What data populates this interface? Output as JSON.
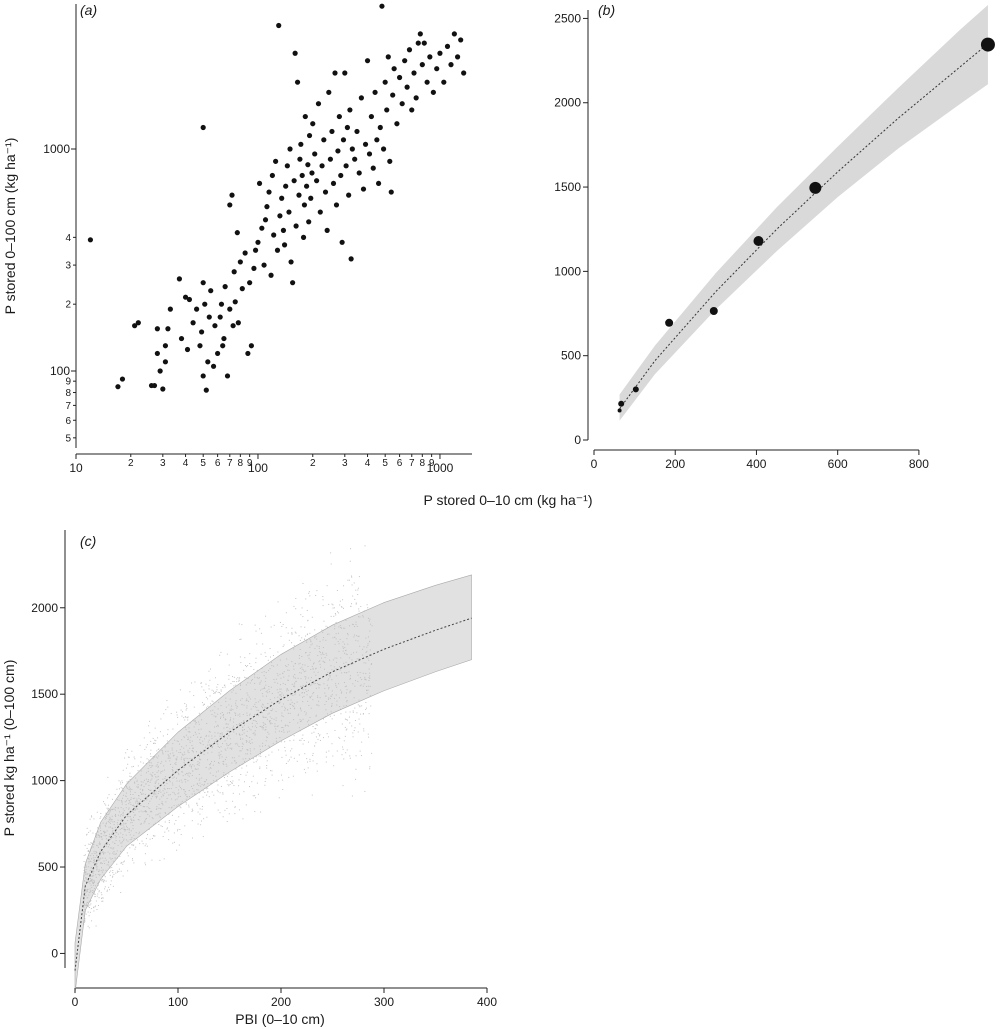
{
  "x_label_ab": "P stored 0–10 cm (kg ha⁻¹)",
  "chart_data": [
    {
      "panel": "a",
      "panel_label": "(a)",
      "type": "scatter",
      "ylabel": "P stored 0–100 cm (kg ha⁻¹)",
      "xscale": "log",
      "yscale": "log",
      "xlim": [
        10,
        1500
      ],
      "ylim": [
        45,
        4500
      ],
      "major_xticks": [
        10,
        100,
        1000
      ],
      "major_xtick_labels": [
        "10",
        "100",
        "1000"
      ],
      "minor_xticks": [
        2,
        3,
        4,
        5,
        6,
        7,
        8,
        9,
        20,
        30,
        40,
        50,
        60,
        70,
        80,
        90,
        200,
        300,
        400,
        500,
        600,
        700,
        800,
        900
      ],
      "major_yticks": [
        100,
        1000
      ],
      "major_ytick_labels": [
        "100",
        "1000"
      ],
      "minor_yticks": [
        5,
        6,
        7,
        8,
        9,
        20,
        30,
        40,
        50,
        60,
        70,
        80,
        90,
        200,
        300,
        400
      ],
      "points": [
        [
          12,
          390
        ],
        [
          17,
          85
        ],
        [
          18,
          92
        ],
        [
          21,
          160
        ],
        [
          22,
          165
        ],
        [
          26,
          86
        ],
        [
          27,
          86
        ],
        [
          28,
          120
        ],
        [
          28,
          155
        ],
        [
          29,
          100
        ],
        [
          30,
          83
        ],
        [
          31,
          110
        ],
        [
          31,
          130
        ],
        [
          32,
          155
        ],
        [
          33,
          190
        ],
        [
          37,
          260
        ],
        [
          38,
          140
        ],
        [
          40,
          215
        ],
        [
          41,
          125
        ],
        [
          42,
          210
        ],
        [
          44,
          165
        ],
        [
          46,
          190
        ],
        [
          48,
          130
        ],
        [
          49,
          150
        ],
        [
          50,
          95
        ],
        [
          50,
          250
        ],
        [
          50,
          1250
        ],
        [
          51,
          200
        ],
        [
          52,
          82
        ],
        [
          53,
          110
        ],
        [
          54,
          175
        ],
        [
          55,
          230
        ],
        [
          57,
          105
        ],
        [
          58,
          160
        ],
        [
          60,
          120
        ],
        [
          62,
          175
        ],
        [
          63,
          200
        ],
        [
          64,
          130
        ],
        [
          65,
          140
        ],
        [
          66,
          240
        ],
        [
          68,
          95
        ],
        [
          70,
          560
        ],
        [
          70,
          190
        ],
        [
          72,
          620
        ],
        [
          73,
          160
        ],
        [
          74,
          280
        ],
        [
          75,
          205
        ],
        [
          77,
          420
        ],
        [
          78,
          165
        ],
        [
          80,
          310
        ],
        [
          82,
          235
        ],
        [
          85,
          340
        ],
        [
          88,
          120
        ],
        [
          90,
          250
        ],
        [
          92,
          130
        ],
        [
          95,
          290
        ],
        [
          97,
          350
        ],
        [
          100,
          380
        ],
        [
          102,
          700
        ],
        [
          105,
          440
        ],
        [
          108,
          300
        ],
        [
          110,
          480
        ],
        [
          112,
          550
        ],
        [
          115,
          640
        ],
        [
          118,
          270
        ],
        [
          120,
          760
        ],
        [
          122,
          410
        ],
        [
          125,
          880
        ],
        [
          128,
          350
        ],
        [
          130,
          3600
        ],
        [
          132,
          500
        ],
        [
          135,
          600
        ],
        [
          138,
          430
        ],
        [
          140,
          370
        ],
        [
          142,
          680
        ],
        [
          145,
          840
        ],
        [
          148,
          520
        ],
        [
          150,
          1000
        ],
        [
          152,
          310
        ],
        [
          155,
          250
        ],
        [
          158,
          720
        ],
        [
          160,
          2700
        ],
        [
          162,
          450
        ],
        [
          165,
          2000
        ],
        [
          168,
          620
        ],
        [
          170,
          900
        ],
        [
          172,
          1050
        ],
        [
          175,
          760
        ],
        [
          178,
          400
        ],
        [
          180,
          560
        ],
        [
          182,
          1400
        ],
        [
          185,
          680
        ],
        [
          188,
          850
        ],
        [
          190,
          470
        ],
        [
          192,
          1150
        ],
        [
          195,
          600
        ],
        [
          198,
          780
        ],
        [
          200,
          1300
        ],
        [
          205,
          950
        ],
        [
          210,
          720
        ],
        [
          215,
          1600
        ],
        [
          220,
          520
        ],
        [
          225,
          840
        ],
        [
          230,
          1100
        ],
        [
          235,
          640
        ],
        [
          240,
          430
        ],
        [
          245,
          1800
        ],
        [
          250,
          900
        ],
        [
          255,
          1200
        ],
        [
          260,
          700
        ],
        [
          265,
          2200
        ],
        [
          270,
          560
        ],
        [
          275,
          980
        ],
        [
          280,
          1400
        ],
        [
          285,
          760
        ],
        [
          290,
          380
        ],
        [
          295,
          1100
        ],
        [
          300,
          2200
        ],
        [
          305,
          840
        ],
        [
          310,
          1250
        ],
        [
          315,
          620
        ],
        [
          320,
          1500
        ],
        [
          325,
          320
        ],
        [
          330,
          1000
        ],
        [
          340,
          900
        ],
        [
          350,
          1200
        ],
        [
          360,
          780
        ],
        [
          370,
          1700
        ],
        [
          380,
          660
        ],
        [
          390,
          1050
        ],
        [
          400,
          2500
        ],
        [
          410,
          950
        ],
        [
          420,
          1400
        ],
        [
          430,
          820
        ],
        [
          440,
          1800
        ],
        [
          450,
          1100
        ],
        [
          460,
          700
        ],
        [
          470,
          1250
        ],
        [
          480,
          4400
        ],
        [
          490,
          1000
        ],
        [
          500,
          2000
        ],
        [
          510,
          1500
        ],
        [
          520,
          2600
        ],
        [
          530,
          880
        ],
        [
          540,
          640
        ],
        [
          550,
          1750
        ],
        [
          560,
          2300
        ],
        [
          580,
          1300
        ],
        [
          600,
          2100
        ],
        [
          620,
          1600
        ],
        [
          640,
          2500
        ],
        [
          660,
          1900
        ],
        [
          680,
          2800
        ],
        [
          700,
          1500
        ],
        [
          720,
          2200
        ],
        [
          740,
          1700
        ],
        [
          760,
          3000
        ],
        [
          780,
          3300
        ],
        [
          800,
          2400
        ],
        [
          820,
          3000
        ],
        [
          850,
          2000
        ],
        [
          880,
          2600
        ],
        [
          920,
          1800
        ],
        [
          960,
          2300
        ],
        [
          1000,
          2700
        ],
        [
          1050,
          2000
        ],
        [
          1100,
          2900
        ],
        [
          1150,
          2400
        ],
        [
          1200,
          3300
        ],
        [
          1250,
          2600
        ],
        [
          1300,
          3100
        ],
        [
          1350,
          2200
        ]
      ]
    },
    {
      "panel": "b",
      "panel_label": "(b)",
      "type": "scatter",
      "xlim": [
        0,
        980
      ],
      "ylim": [
        0,
        2550
      ],
      "xticks": [
        0,
        200,
        400,
        600,
        800
      ],
      "yticks": [
        0,
        500,
        1000,
        1500,
        2000,
        2500
      ],
      "points": [
        {
          "x": 63,
          "y": 175,
          "size": 1
        },
        {
          "x": 67,
          "y": 215,
          "size": 2
        },
        {
          "x": 103,
          "y": 300,
          "size": 2
        },
        {
          "x": 185,
          "y": 695,
          "size": 3
        },
        {
          "x": 295,
          "y": 765,
          "size": 3
        },
        {
          "x": 405,
          "y": 1180,
          "size": 4
        },
        {
          "x": 545,
          "y": 1495,
          "size": 5
        },
        {
          "x": 970,
          "y": 2345,
          "size": 6
        }
      ],
      "fit_curve": [
        [
          63,
          185
        ],
        [
          150,
          470
        ],
        [
          300,
          880
        ],
        [
          450,
          1250
        ],
        [
          600,
          1590
        ],
        [
          750,
          1910
        ],
        [
          900,
          2210
        ],
        [
          970,
          2350
        ]
      ],
      "fit_band_upper": [
        [
          63,
          270
        ],
        [
          150,
          560
        ],
        [
          300,
          990
        ],
        [
          450,
          1380
        ],
        [
          600,
          1740
        ],
        [
          750,
          2090
        ],
        [
          900,
          2430
        ],
        [
          970,
          2580
        ]
      ],
      "fit_band_lower": [
        [
          63,
          115
        ],
        [
          150,
          390
        ],
        [
          300,
          775
        ],
        [
          450,
          1120
        ],
        [
          600,
          1440
        ],
        [
          750,
          1730
        ],
        [
          900,
          1990
        ],
        [
          970,
          2110
        ]
      ]
    },
    {
      "panel": "c",
      "panel_label": "(c)",
      "type": "scatter",
      "xlabel": "PBI (0–10 cm)",
      "ylabel": "P stored kg ha⁻¹ (0–100 cm)",
      "xlim": [
        0,
        400
      ],
      "ylim": [
        -200,
        2450
      ],
      "xticks": [
        0,
        100,
        200,
        300,
        400
      ],
      "yticks": [
        0,
        500,
        1000,
        1500,
        2000
      ],
      "fit_curve": [
        [
          0,
          -100
        ],
        [
          10,
          390
        ],
        [
          25,
          590
        ],
        [
          50,
          800
        ],
        [
          100,
          1060
        ],
        [
          150,
          1280
        ],
        [
          200,
          1470
        ],
        [
          250,
          1630
        ],
        [
          300,
          1760
        ],
        [
          350,
          1870
        ],
        [
          385,
          1940
        ]
      ],
      "fit_band_upper": [
        [
          0,
          60
        ],
        [
          10,
          520
        ],
        [
          25,
          760
        ],
        [
          50,
          980
        ],
        [
          100,
          1280
        ],
        [
          150,
          1520
        ],
        [
          200,
          1730
        ],
        [
          250,
          1900
        ],
        [
          300,
          2030
        ],
        [
          350,
          2130
        ],
        [
          385,
          2190
        ]
      ],
      "fit_band_lower": [
        [
          0,
          -230
        ],
        [
          10,
          250
        ],
        [
          25,
          430
        ],
        [
          50,
          620
        ],
        [
          100,
          850
        ],
        [
          150,
          1050
        ],
        [
          200,
          1230
        ],
        [
          250,
          1390
        ],
        [
          300,
          1520
        ],
        [
          350,
          1630
        ],
        [
          385,
          1700
        ]
      ]
    }
  ]
}
